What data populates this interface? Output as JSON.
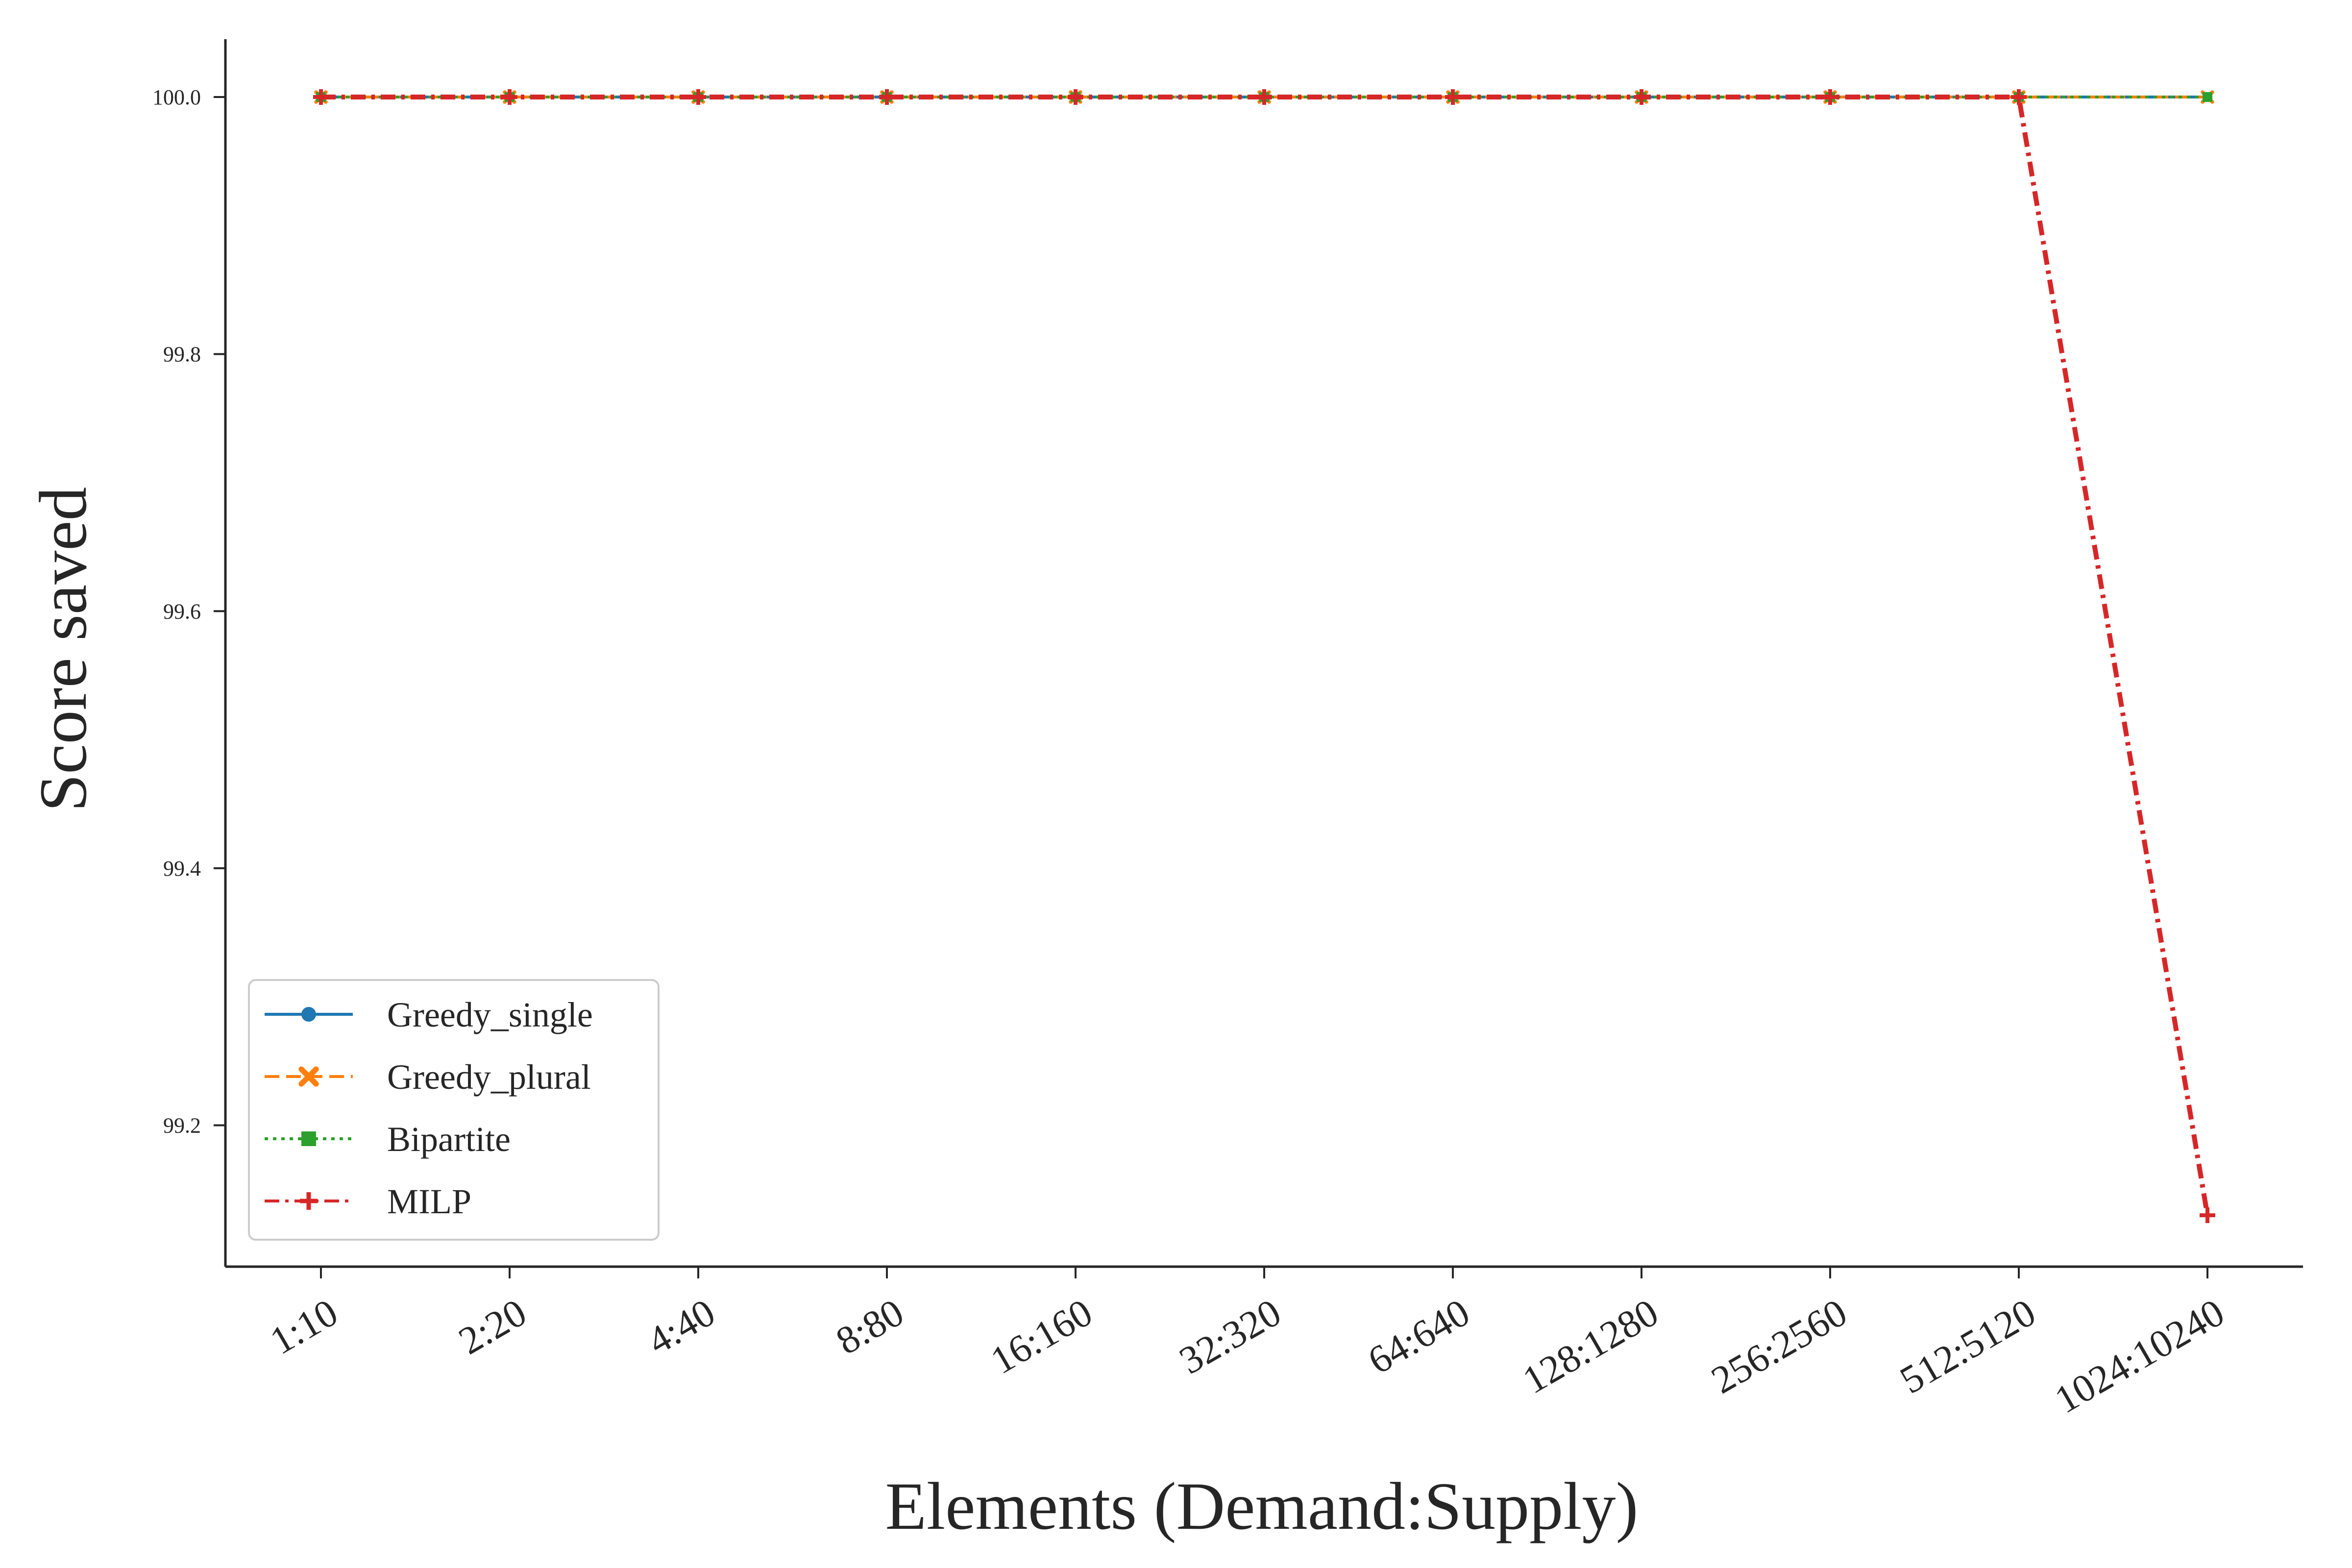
{
  "chart_data": {
    "type": "line",
    "title": "",
    "xlabel": "Elements (Demand:Supply)",
    "ylabel": "Score saved",
    "categories": [
      "1:10",
      "2:20",
      "4:40",
      "8:80",
      "16:160",
      "32:320",
      "64:640",
      "128:1280",
      "256:2560",
      "512:5120",
      "1024:10240"
    ],
    "yticks": [
      "99.2",
      "99.4",
      "99.6",
      "99.8",
      "100.0"
    ],
    "ylim": [
      99.09,
      100.045
    ],
    "grid": false,
    "legend_position": "lower-left",
    "series": [
      {
        "name": "Greedy_single",
        "color": "#1f77b4",
        "marker": "circle",
        "dash": "solid",
        "values": [
          100,
          100,
          100,
          100,
          100,
          100,
          100,
          100,
          100,
          100,
          100
        ]
      },
      {
        "name": "Greedy_plural",
        "color": "#ff7f0e",
        "marker": "x-filled",
        "dash": "dashed",
        "values": [
          100,
          100,
          100,
          100,
          100,
          100,
          100,
          100,
          100,
          100,
          100
        ]
      },
      {
        "name": "Bipartite",
        "color": "#2ca02c",
        "marker": "square",
        "dash": "dotted",
        "values": [
          100,
          100,
          100,
          100,
          100,
          100,
          100,
          100,
          100,
          100,
          100
        ]
      },
      {
        "name": "MILP",
        "color": "#d62728",
        "marker": "plus",
        "dash": "dashdot",
        "values": [
          100,
          100,
          100,
          100,
          100,
          100,
          100,
          100,
          100,
          100,
          99.13
        ]
      }
    ]
  }
}
